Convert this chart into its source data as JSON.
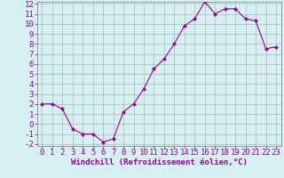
{
  "x": [
    0,
    1,
    2,
    3,
    4,
    5,
    6,
    7,
    8,
    9,
    10,
    11,
    12,
    13,
    14,
    15,
    16,
    17,
    18,
    19,
    20,
    21,
    22,
    23
  ],
  "y": [
    2.0,
    2.0,
    1.5,
    -0.5,
    -1.0,
    -1.0,
    -1.8,
    -1.5,
    1.2,
    2.0,
    3.5,
    5.5,
    6.5,
    8.0,
    9.8,
    10.5,
    12.2,
    11.0,
    11.5,
    11.5,
    10.5,
    10.3,
    7.5,
    7.7
  ],
  "line_color": "#990099",
  "marker": "D",
  "marker_size": 2,
  "bg_color": "#d4f0f0",
  "grid_color": "#aaaaaa",
  "xlabel": "Windchill (Refroidissement éolien,°C)",
  "xlabel_color": "#990099",
  "tick_color": "#990099",
  "ylim": [
    -2,
    12
  ],
  "xlim": [
    -0.5,
    23.5
  ],
  "yticks": [
    -2,
    -1,
    0,
    1,
    2,
    3,
    4,
    5,
    6,
    7,
    8,
    9,
    10,
    11,
    12
  ],
  "xticks": [
    0,
    1,
    2,
    3,
    4,
    5,
    6,
    7,
    8,
    9,
    10,
    11,
    12,
    13,
    14,
    15,
    16,
    17,
    18,
    19,
    20,
    21,
    22,
    23
  ],
  "font_size": 6.5
}
